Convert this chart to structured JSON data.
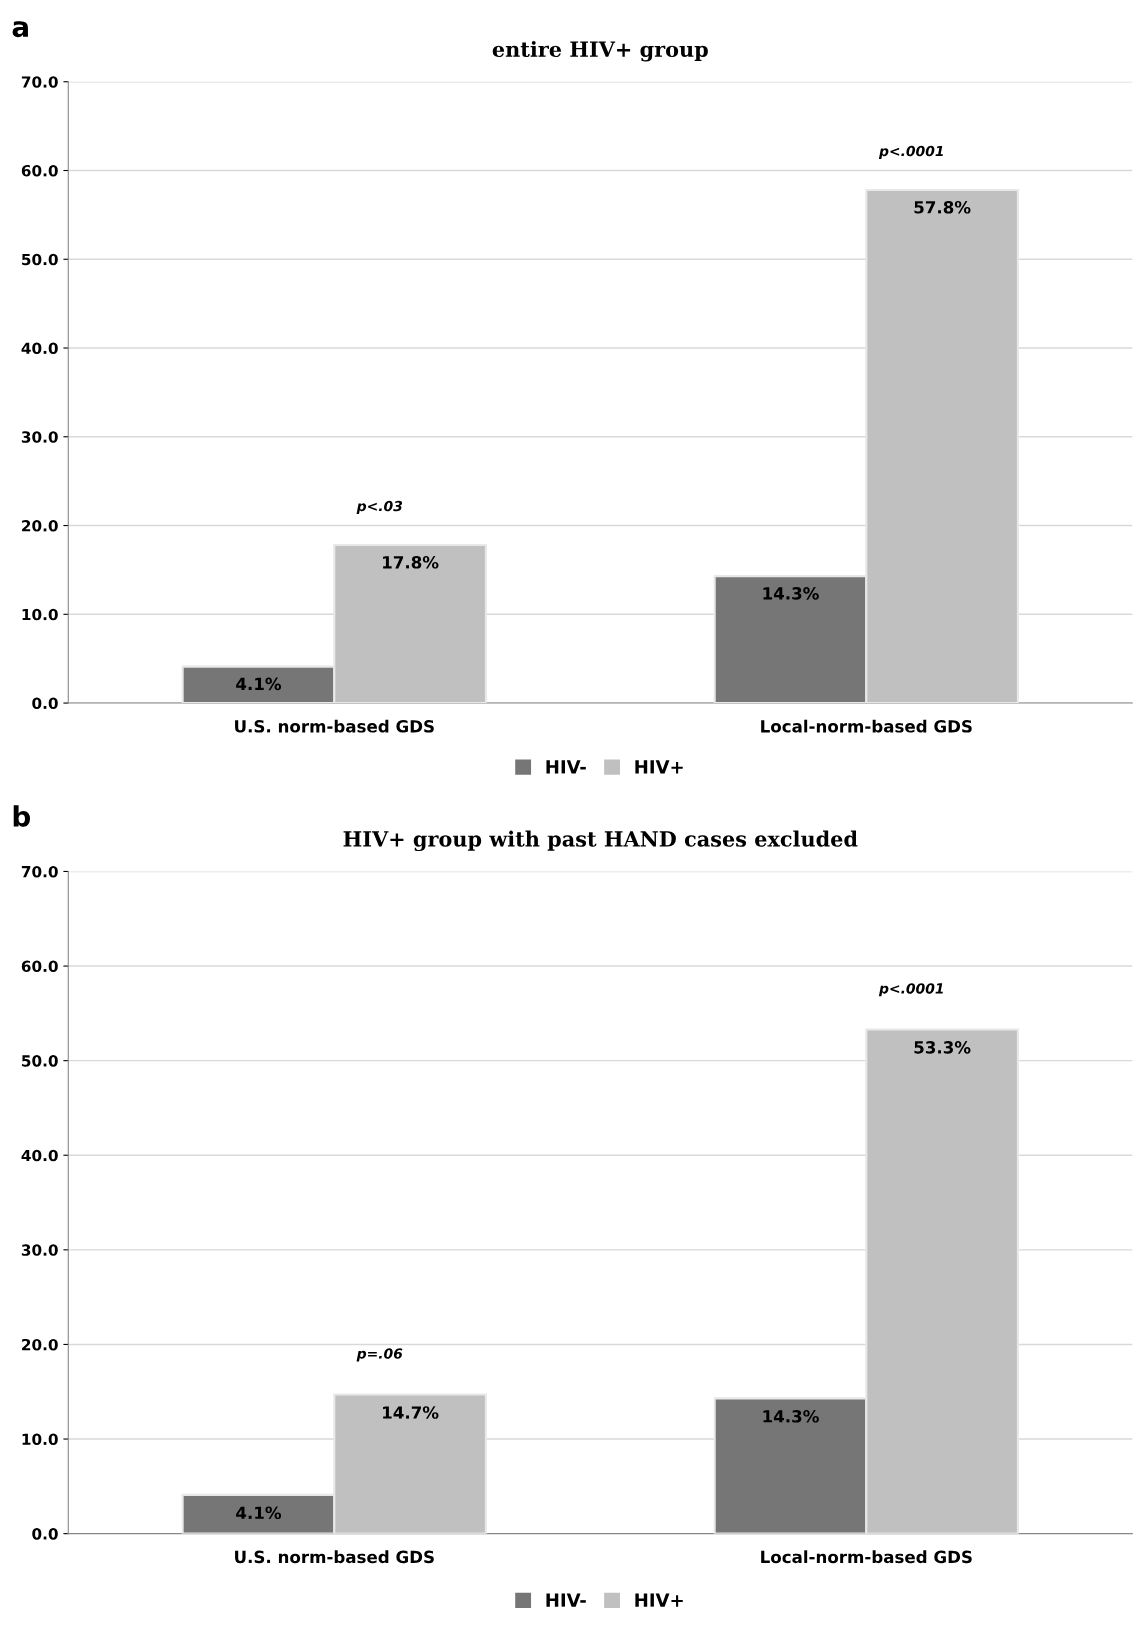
{
  "chart_data": [
    {
      "type": "bar",
      "title": "entire HIV+ group",
      "categories": [
        "U.S. norm-based GDS",
        "Local-norm-based GDS"
      ],
      "series": [
        {
          "name": "HIV-",
          "color": "#767676",
          "values": [
            4.1,
            14.3
          ],
          "value_labels": [
            "4.1%",
            "14.3%"
          ]
        },
        {
          "name": "HIV+",
          "color": "#c0c0c0",
          "values": [
            17.8,
            57.8
          ],
          "value_labels": [
            "17.8%",
            "57.8%"
          ]
        }
      ],
      "ylim": [
        0,
        70
      ],
      "yticks": [
        {
          "value": 0,
          "label": "0.0"
        },
        {
          "value": 10,
          "label": "10.0"
        },
        {
          "value": 20,
          "label": "20.0"
        },
        {
          "value": 30,
          "label": "30.0"
        },
        {
          "value": 40,
          "label": "40.0"
        },
        {
          "value": 50,
          "label": "50.0"
        },
        {
          "value": 60,
          "label": "60.0"
        },
        {
          "value": 70,
          "label": "70.0"
        }
      ],
      "grid": "y",
      "legend": "bottom",
      "annotations": [
        "a",
        {
          "text": "p<.03",
          "x": "U.S. norm-based GDS",
          "y": 17.8
        },
        {
          "text": "p<.0001",
          "x": "Local-norm-based GDS",
          "y": 57.8
        }
      ]
    },
    {
      "type": "bar",
      "title": "HIV+ group with past HAND cases excluded",
      "categories": [
        "U.S. norm-based GDS",
        "Local-norm-based GDS"
      ],
      "series": [
        {
          "name": "HIV-",
          "color": "#767676",
          "values": [
            4.1,
            14.3
          ],
          "value_labels": [
            "4.1%",
            "14.3%"
          ]
        },
        {
          "name": "HIV+",
          "color": "#c0c0c0",
          "values": [
            14.7,
            53.3
          ],
          "value_labels": [
            "14.7%",
            "53.3%"
          ]
        }
      ],
      "ylim": [
        0,
        70
      ],
      "yticks": [
        {
          "value": 0,
          "label": "0.0"
        },
        {
          "value": 10,
          "label": "10.0"
        },
        {
          "value": 20,
          "label": "20.0"
        },
        {
          "value": 30,
          "label": "30.0"
        },
        {
          "value": 40,
          "label": "40.0"
        },
        {
          "value": 50,
          "label": "50.0"
        },
        {
          "value": 60,
          "label": "60.0"
        },
        {
          "value": 70,
          "label": "70.0"
        }
      ],
      "grid": "y",
      "legend": "bottom",
      "annotations": [
        "b",
        {
          "text": "p=.06",
          "x": "U.S. norm-based GDS",
          "y": 14.7
        },
        {
          "text": "p<.0001",
          "x": "Local-norm-based GDS",
          "y": 53.3
        }
      ]
    }
  ]
}
